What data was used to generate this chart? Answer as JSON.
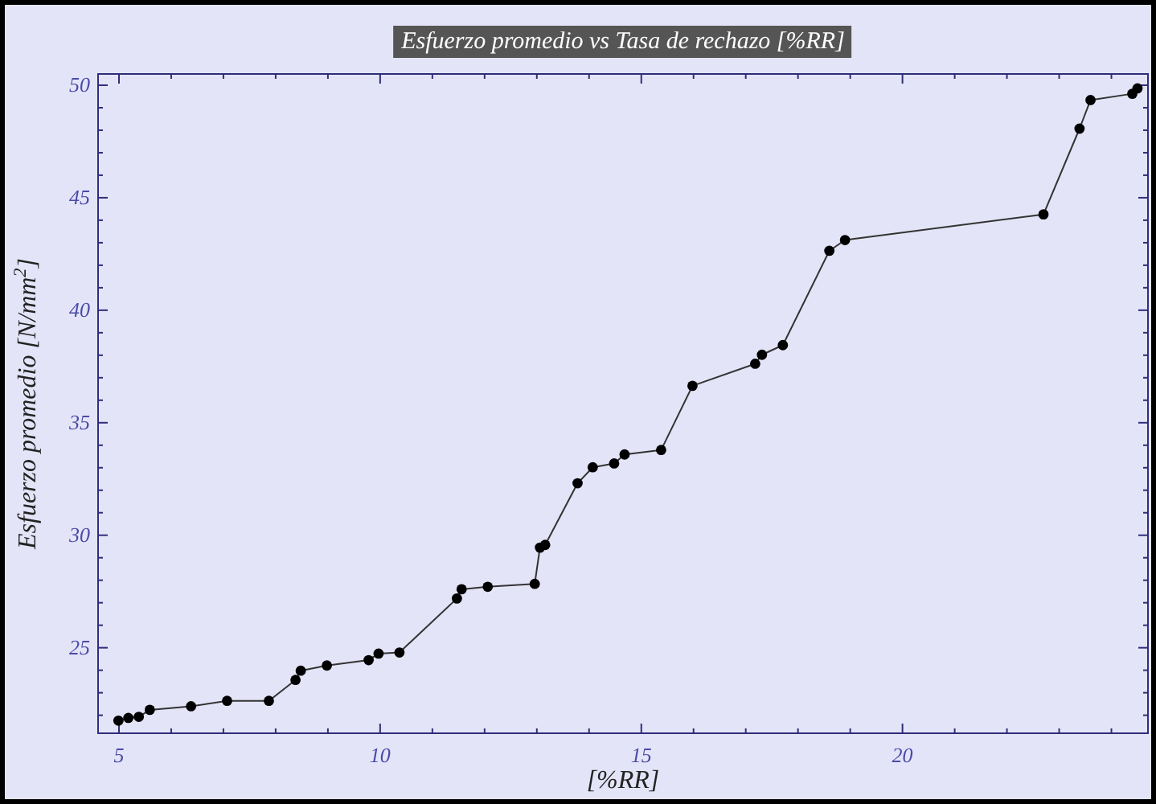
{
  "chart_data": {
    "type": "line",
    "title": "Esfuerzo promedio vs Tasa de rechazo [%RR]",
    "xlabel": "[%RR]",
    "ylabel": "Esfuerzo promedio [N/mm$^{2}$]",
    "xlim": [
      4.6,
      24.7
    ],
    "ylim": [
      21.2,
      50.5
    ],
    "xticks": [
      5,
      {
        "value": 6,
        "label": null
      },
      {
        "value": 7,
        "label": null
      },
      {
        "value": 8,
        "label": null
      },
      {
        "value": 9,
        "label": null
      },
      10,
      {
        "value": 11,
        "label": null
      },
      {
        "value": 12,
        "label": null
      },
      {
        "value": 13,
        "label": null
      },
      {
        "value": 14,
        "label": null
      },
      15,
      {
        "value": 16,
        "label": null
      },
      {
        "value": 17,
        "label": null
      },
      {
        "value": 18,
        "label": null
      },
      {
        "value": 19,
        "label": null
      },
      20,
      {
        "value": 21,
        "label": null
      },
      {
        "value": 22,
        "label": null
      },
      {
        "value": 23,
        "label": null
      },
      {
        "value": 24,
        "label": null
      }
    ],
    "yticks": [
      {
        "value": 22,
        "label": null
      },
      {
        "value": 23,
        "label": null
      },
      {
        "value": 24,
        "label": null
      },
      25,
      {
        "value": 26,
        "label": null
      },
      {
        "value": 27,
        "label": null
      },
      {
        "value": 28,
        "label": null
      },
      {
        "value": 29,
        "label": null
      },
      30,
      {
        "value": 31,
        "label": null
      },
      {
        "value": 32,
        "label": null
      },
      {
        "value": 33,
        "label": null
      },
      {
        "value": 34,
        "label": null
      },
      35,
      {
        "value": 36,
        "label": null
      },
      {
        "value": 37,
        "label": null
      },
      {
        "value": 38,
        "label": null
      },
      {
        "value": 39,
        "label": null
      },
      40,
      {
        "value": 41,
        "label": null
      },
      {
        "value": 42,
        "label": null
      },
      {
        "value": 43,
        "label": null
      },
      {
        "value": 44,
        "label": null
      },
      45,
      {
        "value": 46,
        "label": null
      },
      {
        "value": 47,
        "label": null
      },
      {
        "value": 48,
        "label": null
      },
      {
        "value": 49,
        "label": null
      },
      50
    ],
    "grid": false,
    "marker": "circle",
    "line_style": "solid",
    "series": [
      {
        "color": "#000000",
        "x": [
          4.99,
          5.18,
          5.38,
          5.59,
          6.38,
          7.07,
          7.87,
          8.38,
          8.48,
          8.98,
          9.78,
          9.97,
          10.37,
          11.47,
          11.56,
          12.06,
          12.96,
          13.06,
          13.16,
          13.78,
          14.07,
          14.48,
          14.68,
          15.38,
          15.98,
          17.18,
          17.31,
          17.71,
          18.6,
          18.9,
          22.7,
          23.39,
          23.6,
          24.4,
          24.5
        ],
        "values": [
          21.76,
          21.88,
          21.93,
          22.24,
          22.4,
          22.64,
          22.64,
          23.57,
          23.98,
          24.21,
          24.45,
          24.74,
          24.79,
          27.19,
          27.6,
          27.71,
          27.84,
          29.45,
          29.57,
          32.31,
          33.02,
          33.19,
          33.59,
          33.79,
          36.64,
          37.62,
          38.02,
          38.45,
          42.64,
          43.12,
          44.26,
          48.07,
          49.34,
          49.62,
          49.86
        ]
      }
    ]
  }
}
